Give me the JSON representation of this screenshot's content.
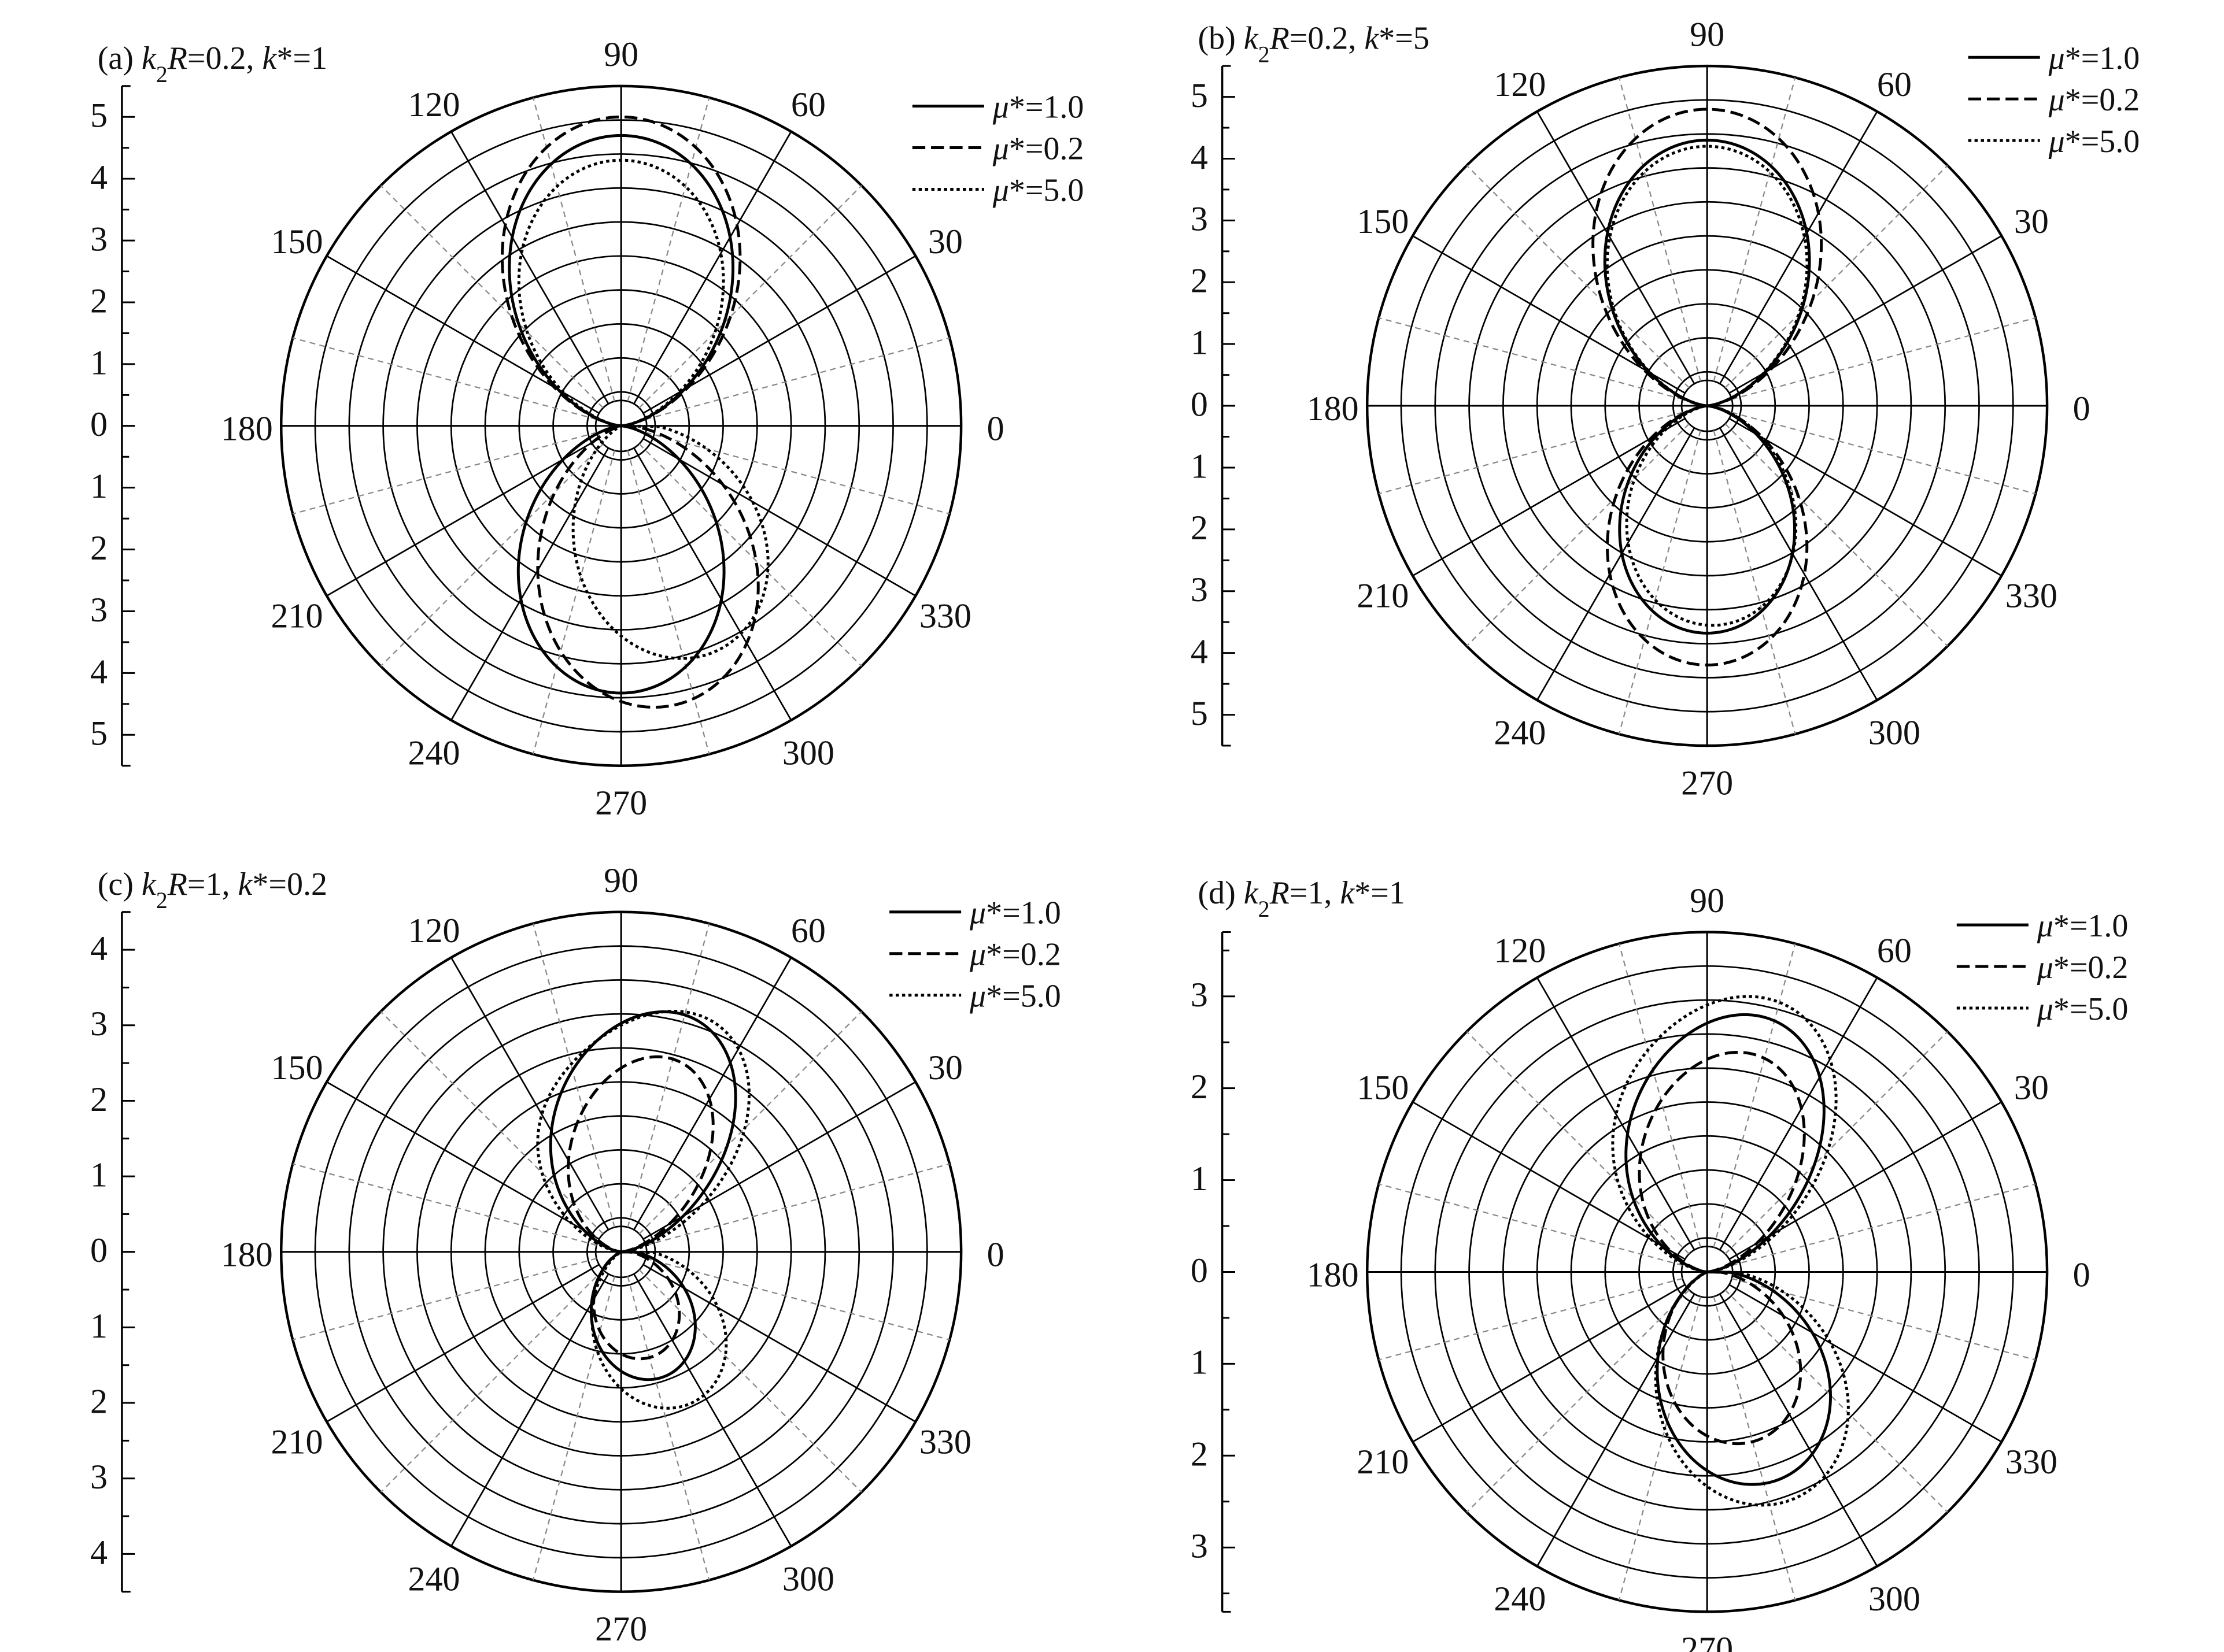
{
  "chart_data": [
    {
      "type": "polar",
      "title": "(a) k2R=0.2, k*=1",
      "title_parts": {
        "label": "(a) ",
        "k": "k",
        "sub": "2",
        "R": "R",
        "rest": "=0.2, ",
        "kstar": "k",
        "kstar_rest": "*=1"
      },
      "rmax": 5.5,
      "radial_ticks_top": [
        "5",
        "4",
        "3",
        "2",
        "1",
        "0"
      ],
      "radial_ticks_bottom": [
        "1",
        "2",
        "3",
        "4",
        "5"
      ],
      "angle_labels": [
        "0",
        "30",
        "60",
        "90",
        "120",
        "150",
        "180",
        "210",
        "240",
        "270",
        "300",
        "330"
      ],
      "legend": [
        "μ*=1.0",
        "μ*=0.2",
        "μ*=5.0"
      ],
      "series": [
        {
          "name": "μ*=1.0",
          "style": "solid",
          "model": {
            "a": 4.7,
            "b": 0,
            "phi": 0,
            "c": 0,
            "phi2": 0,
            "lowerScale": 1.0,
            "lowerRot": 0
          }
        },
        {
          "name": "μ*=0.2",
          "style": "dashed",
          "model": {
            "a": 5.0,
            "b": 0,
            "phi": 0,
            "c": 0,
            "phi2": 0,
            "lowerScale": 1.0,
            "lowerRot": 10
          }
        },
        {
          "name": "μ*=5.0",
          "style": "dotted",
          "model": {
            "a": 4.3,
            "b": 0,
            "phi": 0,
            "c": 0,
            "phi2": 0,
            "lowerScale": 1.0,
            "lowerRot": 22
          }
        }
      ]
    },
    {
      "type": "polar",
      "title": "(b) k2R=0.2, k*=5",
      "title_parts": {
        "label": "(b) ",
        "k": "k",
        "sub": "2",
        "R": "R",
        "rest": "=0.2, ",
        "kstar": "k",
        "kstar_rest": "*=5"
      },
      "rmax": 5.5,
      "radial_ticks_top": [
        "5",
        "4",
        "3",
        "2",
        "1",
        "0"
      ],
      "radial_ticks_bottom": [
        "1",
        "2",
        "3",
        "4",
        "5"
      ],
      "angle_labels": [
        "0",
        "30",
        "60",
        "90",
        "120",
        "150",
        "180",
        "210",
        "240",
        "270",
        "300",
        "330"
      ],
      "legend": [
        "μ*=1.0",
        "μ*=0.2",
        "μ*=5.0"
      ],
      "series": [
        {
          "name": "μ*=1.0",
          "style": "solid",
          "model": {
            "a": 4.3,
            "b": 0,
            "phi": 0,
            "c": 0,
            "phi2": 0,
            "lowerScale": 0.93,
            "lowerRot": 0
          }
        },
        {
          "name": "μ*=0.2",
          "style": "dashed",
          "model": {
            "a": 4.8,
            "b": 0,
            "phi": 0,
            "c": 0,
            "phi2": 0,
            "lowerScale": 0.95,
            "lowerRot": 0
          }
        },
        {
          "name": "μ*=5.0",
          "style": "dotted",
          "model": {
            "a": 4.2,
            "b": 0,
            "phi": 0,
            "c": 0,
            "phi2": 0,
            "lowerScale": 0.92,
            "lowerRot": 2
          }
        }
      ]
    },
    {
      "type": "polar",
      "title": "(c) k2R=1, k*=0.2",
      "title_parts": {
        "label": "(c) ",
        "k": "k",
        "sub": "2",
        "R": "R",
        "rest": "=1, ",
        "kstar": "k",
        "kstar_rest": "*=0.2"
      },
      "rmax": 4.5,
      "radial_ticks_top": [
        "4",
        "3",
        "2",
        "1",
        "0"
      ],
      "radial_ticks_bottom": [
        "1",
        "2",
        "3",
        "4"
      ],
      "angle_labels": [
        "0",
        "30",
        "60",
        "90",
        "120",
        "150",
        "180",
        "210",
        "240",
        "270",
        "300",
        "330"
      ],
      "legend": [
        "μ*=1.0",
        "μ*=0.2",
        "μ*=5.0"
      ],
      "series": [
        {
          "name": "μ*=1.0",
          "style": "solid",
          "model": {
            "a": 2.0,
            "b": 1.6,
            "phi": 60,
            "c": 0.3,
            "phi2": 120,
            "lowerScale": 0.95,
            "lowerRot": 18
          }
        },
        {
          "name": "μ*=0.2",
          "style": "dashed",
          "model": {
            "a": 1.5,
            "b": 1.4,
            "phi": 62,
            "c": 0.2,
            "phi2": 120,
            "lowerScale": 1.05,
            "lowerRot": 15
          }
        },
        {
          "name": "μ*=5.0",
          "style": "dotted",
          "model": {
            "a": 2.4,
            "b": 1.6,
            "phi": 50,
            "c": 0.4,
            "phi2": 135,
            "lowerScale": 1.0,
            "lowerRot": 25
          }
        }
      ]
    },
    {
      "type": "polar",
      "title": "(d) k2R=1, k*=1",
      "title_parts": {
        "label": "(d) ",
        "k": "k",
        "sub": "2",
        "R": "R",
        "rest": "=1, ",
        "kstar": "k",
        "kstar_rest": "*=1"
      },
      "rmax": 3.7,
      "radial_ticks_top": [
        "3",
        "2",
        "1",
        "0"
      ],
      "radial_ticks_bottom": [
        "1",
        "2",
        "3"
      ],
      "angle_labels": [
        "0",
        "30",
        "60",
        "90",
        "120",
        "150",
        "180",
        "210",
        "240",
        "270",
        "300",
        "330"
      ],
      "legend": [
        "μ*=1.0",
        "μ*=0.2",
        "μ*=5.0"
      ],
      "series": [
        {
          "name": "μ*=1.0",
          "style": "solid",
          "model": {
            "a": 2.0,
            "b": 1.1,
            "phi": 62,
            "c": 0.2,
            "phi2": 130,
            "lowerScale": 1.3,
            "lowerRot": 18
          }
        },
        {
          "name": "μ*=0.2",
          "style": "dashed",
          "model": {
            "a": 1.6,
            "b": 1.0,
            "phi": 65,
            "c": 0.2,
            "phi2": 130,
            "lowerScale": 1.3,
            "lowerRot": 15
          }
        },
        {
          "name": "μ*=5.0",
          "style": "dotted",
          "model": {
            "a": 2.3,
            "b": 1.1,
            "phi": 58,
            "c": 0.3,
            "phi2": 135,
            "lowerScale": 1.25,
            "lowerRot": 20
          }
        }
      ]
    }
  ]
}
